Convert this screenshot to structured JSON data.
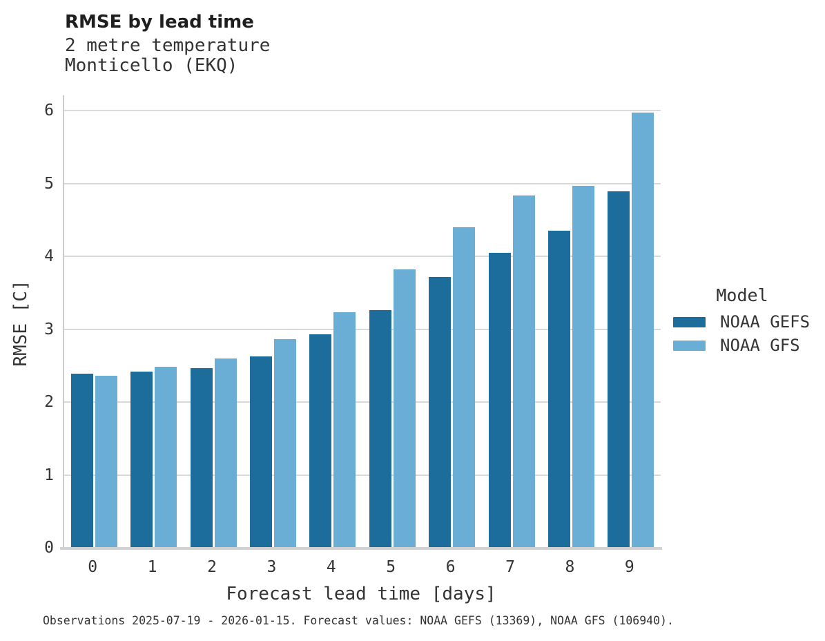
{
  "header": {
    "title": "RMSE by lead time",
    "subtitle_line1": "2 metre temperature",
    "subtitle_line2": "Monticello (EKQ)"
  },
  "chart_data": {
    "type": "bar",
    "title": "RMSE by lead time",
    "subtitle": "2 metre temperature / Monticello (EKQ)",
    "categories": [
      "0",
      "1",
      "2",
      "3",
      "4",
      "5",
      "6",
      "7",
      "8",
      "9"
    ],
    "series": [
      {
        "name": "NOAA GEFS",
        "color": "#1c6d9c",
        "values": [
          2.39,
          2.42,
          2.46,
          2.63,
          2.93,
          3.26,
          3.72,
          4.05,
          4.35,
          4.89
        ]
      },
      {
        "name": "NOAA GFS",
        "color": "#6aaed6",
        "values": [
          2.36,
          2.48,
          2.6,
          2.86,
          3.23,
          3.82,
          4.4,
          4.83,
          4.97,
          5.97
        ]
      }
    ],
    "xlabel": "Forecast lead time [days]",
    "ylabel": "RMSE [C]",
    "ylim": [
      0,
      6.2
    ],
    "yticks": [
      0,
      1,
      2,
      3,
      4,
      5,
      6
    ],
    "grid": "horizontal",
    "legend_title": "Model",
    "legend_position": "right",
    "gridline_color": "#d9d9d9",
    "axis_color": "#cbcbcb",
    "text_color": "#333333"
  },
  "footer": {
    "caption": "Observations 2025-07-19 - 2026-01-15. Forecast values: NOAA GEFS (13369), NOAA GFS (106940)."
  }
}
